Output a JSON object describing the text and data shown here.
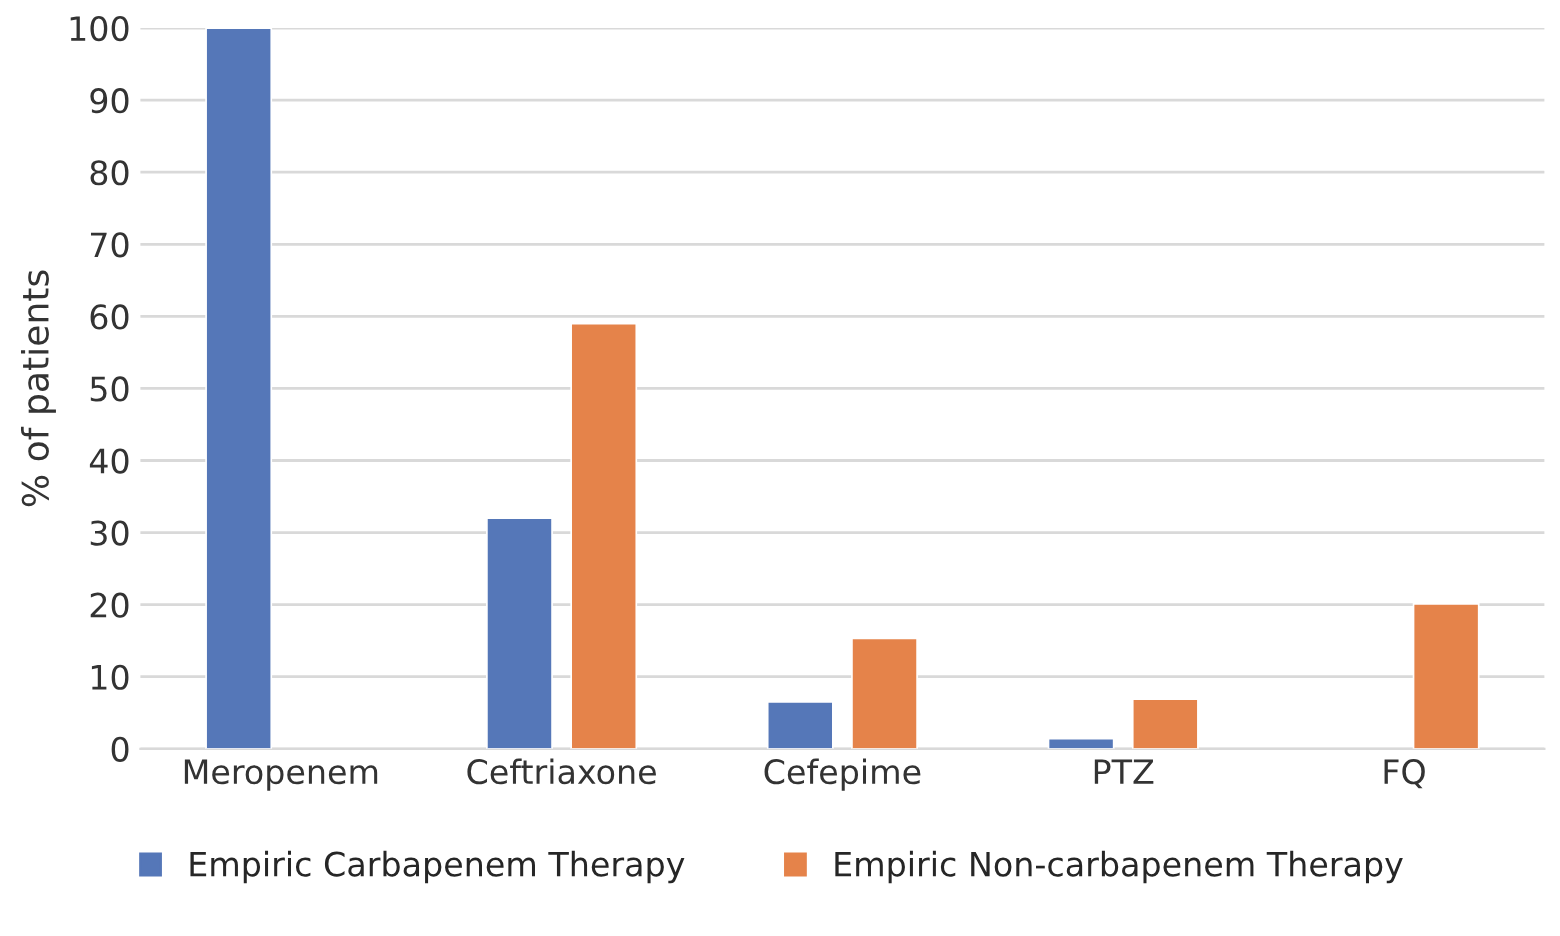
{
  "chart_data": {
    "type": "bar",
    "ylabel": "% of patients",
    "categories": [
      "Meropenem",
      "Ceftriaxone",
      "Cefepime",
      "PTZ",
      "FQ"
    ],
    "series": [
      {
        "name": "Empiric Carbapenem Therapy",
        "color": "#5577b8",
        "values": [
          100,
          32,
          6.5,
          1.4,
          null
        ]
      },
      {
        "name": "Empiric Non-carbapenem Therapy",
        "color": "#e5834a",
        "values": [
          null,
          59,
          15.3,
          6.9,
          20.1
        ]
      }
    ],
    "ylim": [
      0,
      100
    ],
    "yticks": [
      0,
      10,
      20,
      30,
      40,
      50,
      60,
      70,
      80,
      90,
      100
    ],
    "grid": "y",
    "legend": "bottom"
  }
}
